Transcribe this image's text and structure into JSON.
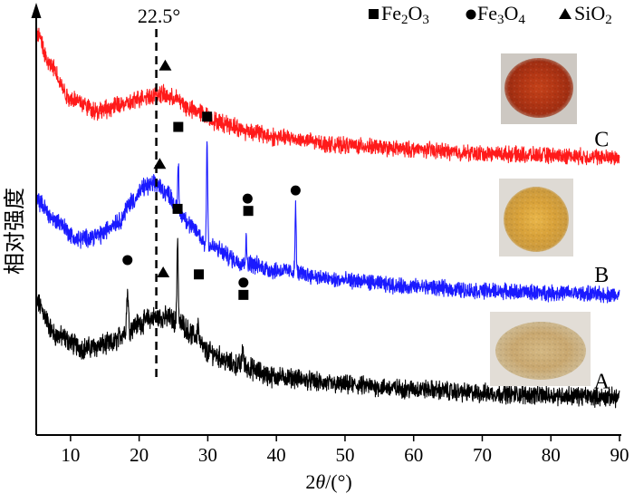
{
  "chart_data": {
    "type": "line",
    "xlabel_main": "2",
    "xlabel_var": "θ",
    "xlabel_unit": "/(°)",
    "ylabel": "相对强度",
    "xlim": [
      5,
      90
    ],
    "xticks": [
      10,
      20,
      30,
      40,
      50,
      60,
      70,
      80,
      90
    ],
    "ylim": [
      0,
      100
    ],
    "yticks": [],
    "grid": false,
    "reference_line": {
      "x": 22.5,
      "label": "22.5°",
      "style": "dashed"
    },
    "legend": {
      "position": "top-right",
      "entries": [
        {
          "marker": "square",
          "label_base": "Fe",
          "sub1": "2",
          "mid": "O",
          "sub2": "3"
        },
        {
          "marker": "circle",
          "label_base": "Fe",
          "sub1": "3",
          "mid": "O",
          "sub2": "4"
        },
        {
          "marker": "triangle",
          "label_base": "Si",
          "sub1": "",
          "mid": "O",
          "sub2": "2"
        }
      ]
    },
    "series": [
      {
        "name": "A",
        "color": "#000000",
        "baseline": [
          [
            5,
            30
          ],
          [
            8,
            22
          ],
          [
            12,
            19
          ],
          [
            16,
            20
          ],
          [
            18,
            23
          ],
          [
            20,
            25
          ],
          [
            22,
            26.5
          ],
          [
            24,
            26.5
          ],
          [
            26,
            25
          ],
          [
            28,
            22
          ],
          [
            30,
            18
          ],
          [
            34,
            15
          ],
          [
            40,
            12
          ],
          [
            50,
            10
          ],
          [
            60,
            9
          ],
          [
            70,
            8
          ],
          [
            80,
            7.5
          ],
          [
            90,
            7
          ]
        ],
        "noise": 1.8,
        "peaks": [
          {
            "x": 18.3,
            "height": 9.5,
            "width": 0.18
          },
          {
            "x": 25.6,
            "height": 21,
            "width": 0.13
          },
          {
            "x": 28.6,
            "height": 4,
            "width": 0.13
          },
          {
            "x": 35.1,
            "height": 5,
            "width": 0.13
          }
        ],
        "markers": [
          {
            "x": 18.3,
            "y": 40.5,
            "type": "circle"
          },
          {
            "x": 23.5,
            "y": 37.5,
            "type": "triangle"
          },
          {
            "x": 25.6,
            "y": 53,
            "type": "square"
          },
          {
            "x": 28.7,
            "y": 37,
            "type": "square"
          },
          {
            "x": 35.2,
            "y": 35,
            "type": "circle"
          },
          {
            "x": 35.2,
            "y": 32,
            "type": "square"
          }
        ]
      },
      {
        "name": "B",
        "color": "#1a1aff",
        "baseline": [
          [
            5,
            55
          ],
          [
            8,
            50
          ],
          [
            11,
            45.5
          ],
          [
            14,
            46.5
          ],
          [
            17,
            50
          ],
          [
            19,
            55
          ],
          [
            21,
            58.5
          ],
          [
            22.5,
            59
          ],
          [
            24,
            57
          ],
          [
            26,
            52
          ],
          [
            28,
            48
          ],
          [
            30,
            44
          ],
          [
            35,
            40
          ],
          [
            40,
            38
          ],
          [
            50,
            35.5
          ],
          [
            60,
            34
          ],
          [
            70,
            33
          ],
          [
            80,
            32.5
          ],
          [
            90,
            32
          ]
        ],
        "noise": 1.5,
        "peaks": [
          {
            "x": 25.7,
            "height": 12,
            "width": 0.12
          },
          {
            "x": 29.9,
            "height": 27,
            "width": 0.12
          },
          {
            "x": 35.6,
            "height": 5,
            "width": 0.13
          },
          {
            "x": 42.8,
            "height": 16,
            "width": 0.12
          }
        ],
        "markers": [
          {
            "x": 23,
            "y": 64,
            "type": "triangle"
          },
          {
            "x": 25.7,
            "y": 73,
            "type": "square"
          },
          {
            "x": 29.9,
            "y": 75.5,
            "type": "square"
          },
          {
            "x": 35.8,
            "y": 55.5,
            "type": "circle"
          },
          {
            "x": 35.9,
            "y": 52.5,
            "type": "square"
          },
          {
            "x": 42.8,
            "y": 57.5,
            "type": "circle"
          }
        ]
      },
      {
        "name": "C",
        "color": "#ff1a1a",
        "baseline": [
          [
            5,
            96
          ],
          [
            7,
            88
          ],
          [
            10,
            80
          ],
          [
            14,
            77
          ],
          [
            18,
            78.5
          ],
          [
            21,
            80.5
          ],
          [
            23,
            81
          ],
          [
            25,
            80
          ],
          [
            28,
            77
          ],
          [
            32,
            74
          ],
          [
            36,
            72
          ],
          [
            40,
            70.5
          ],
          [
            50,
            68.5
          ],
          [
            60,
            67.5
          ],
          [
            70,
            66.5
          ],
          [
            80,
            66
          ],
          [
            90,
            65.5
          ]
        ],
        "noise": 1.5,
        "peaks": [],
        "markers": [
          {
            "x": 23.8,
            "y": 88,
            "type": "triangle"
          }
        ]
      }
    ],
    "series_labels": [
      {
        "name": "A",
        "x": 87.4,
        "y": 11
      },
      {
        "name": "B",
        "x": 87.4,
        "y": 37
      },
      {
        "name": "C",
        "x": 87.4,
        "y": 70
      }
    ]
  }
}
